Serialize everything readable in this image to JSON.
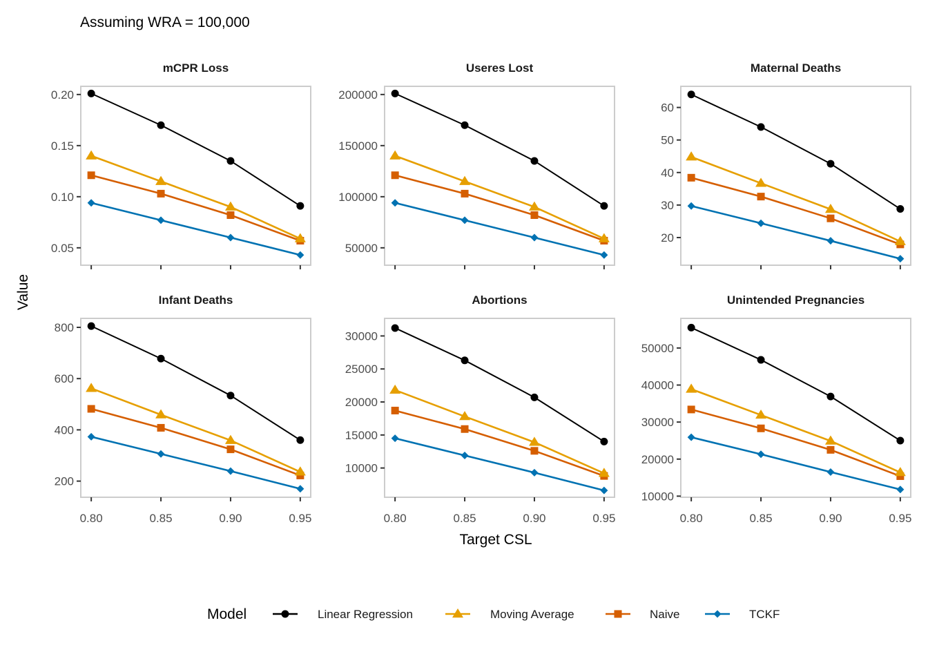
{
  "caption": "Assuming WRA = 100,000",
  "chart_data": {
    "type": "line",
    "x": [
      0.8,
      0.85,
      0.9,
      0.95
    ],
    "x_tick_labels": [
      "0.80",
      "0.85",
      "0.90",
      "0.95"
    ],
    "xlabel": "Target CSL",
    "ylabel": "Value",
    "legend": {
      "title": "Model",
      "position": "bottom",
      "items": [
        {
          "name": "Linear Regression",
          "color": "#000000",
          "marker": "circle"
        },
        {
          "name": "Moving Average",
          "color": "#E69F00",
          "marker": "triangle"
        },
        {
          "name": "Naive",
          "color": "#D55E00",
          "marker": "square"
        },
        {
          "name": "TCKF",
          "color": "#0072B2",
          "marker": "diamond"
        }
      ]
    },
    "panels": [
      {
        "title": "mCPR Loss",
        "ylim": [
          0.033,
          0.208
        ],
        "yticks": [
          0.05,
          0.1,
          0.15,
          0.2
        ],
        "ytick_labels": [
          "0.05",
          "0.10",
          "0.15",
          "0.20"
        ],
        "series": [
          {
            "name": "Linear Regression",
            "values": [
              0.201,
              0.17,
              0.135,
              0.091
            ]
          },
          {
            "name": "Moving Average",
            "values": [
              0.14,
              0.115,
              0.09,
              0.059
            ]
          },
          {
            "name": "Naive",
            "values": [
              0.121,
              0.103,
              0.082,
              0.057
            ]
          },
          {
            "name": "TCKF",
            "values": [
              0.094,
              0.077,
              0.06,
              0.043
            ]
          }
        ]
      },
      {
        "title": "Useres Lost",
        "ylim": [
          33000,
          208000
        ],
        "yticks": [
          50000,
          100000,
          150000,
          200000
        ],
        "ytick_labels": [
          "50000",
          "100000",
          "150000",
          "200000"
        ],
        "series": [
          {
            "name": "Linear Regression",
            "values": [
              201000,
              170000,
              135000,
              91000
            ]
          },
          {
            "name": "Moving Average",
            "values": [
              140000,
              115000,
              90000,
              59000
            ]
          },
          {
            "name": "Naive",
            "values": [
              121000,
              103000,
              82000,
              57000
            ]
          },
          {
            "name": "TCKF",
            "values": [
              94000,
              77000,
              60000,
              43000
            ]
          }
        ]
      },
      {
        "title": "Maternal Deaths",
        "ylim": [
          11.5,
          66.5
        ],
        "yticks": [
          20,
          30,
          40,
          50,
          60
        ],
        "ytick_labels": [
          "20",
          "30",
          "40",
          "50",
          "60"
        ],
        "series": [
          {
            "name": "Linear Regression",
            "values": [
              64.0,
              54.0,
              42.7,
              28.8
            ]
          },
          {
            "name": "Moving Average",
            "values": [
              44.8,
              36.7,
              28.7,
              18.8
            ]
          },
          {
            "name": "Naive",
            "values": [
              38.4,
              32.6,
              25.9,
              17.9
            ]
          },
          {
            "name": "TCKF",
            "values": [
              29.7,
              24.4,
              19.0,
              13.5
            ]
          }
        ]
      },
      {
        "title": "Infant Deaths",
        "ylim": [
          137,
          835
        ],
        "yticks": [
          200,
          400,
          600,
          800
        ],
        "ytick_labels": [
          "200",
          "400",
          "600",
          "800"
        ],
        "series": [
          {
            "name": "Linear Regression",
            "values": [
              805,
              678,
              534,
              360
            ]
          },
          {
            "name": "Moving Average",
            "values": [
              562,
              459,
              359,
              236
            ]
          },
          {
            "name": "Naive",
            "values": [
              482,
              408,
              324,
              222
            ]
          },
          {
            "name": "TCKF",
            "values": [
              373,
              306,
              239,
              170
            ]
          }
        ]
      },
      {
        "title": "Abortions",
        "ylim": [
          5570,
          32660
        ],
        "yticks": [
          10000,
          15000,
          20000,
          25000,
          30000
        ],
        "ytick_labels": [
          "10000",
          "15000",
          "20000",
          "25000",
          "30000"
        ],
        "series": [
          {
            "name": "Linear Regression",
            "values": [
              31200,
              26300,
              20700,
              14000
            ]
          },
          {
            "name": "Moving Average",
            "values": [
              21800,
              17800,
              13900,
              9200
            ]
          },
          {
            "name": "Naive",
            "values": [
              18700,
              15900,
              12600,
              8800
            ]
          },
          {
            "name": "TCKF",
            "values": [
              14500,
              11900,
              9300,
              6600
            ]
          }
        ]
      },
      {
        "title": "Unintended Pregnancies",
        "ylim": [
          9700,
          58000
        ],
        "yticks": [
          10000,
          20000,
          30000,
          40000,
          50000
        ],
        "ytick_labels": [
          "10000",
          "20000",
          "30000",
          "40000",
          "50000"
        ],
        "series": [
          {
            "name": "Linear Regression",
            "values": [
              55500,
              46800,
              36900,
              25000
            ]
          },
          {
            "name": "Moving Average",
            "values": [
              38900,
              31900,
              24900,
              16400
            ]
          },
          {
            "name": "Naive",
            "values": [
              33400,
              28300,
              22500,
              15400
            ]
          },
          {
            "name": "TCKF",
            "values": [
              25900,
              21300,
              16500,
              11800
            ]
          }
        ]
      }
    ]
  }
}
